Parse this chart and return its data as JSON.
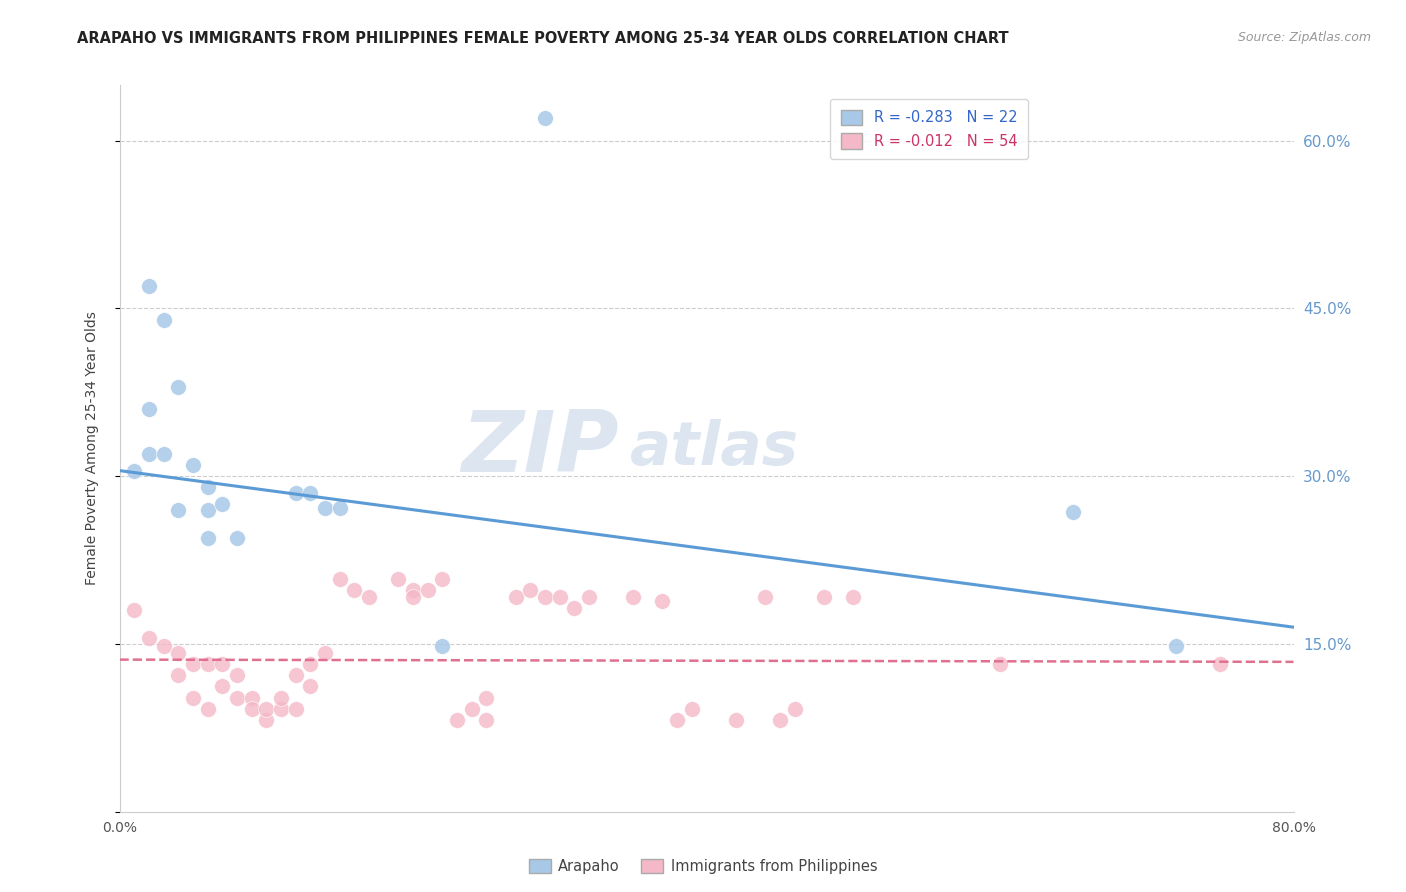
{
  "title": "ARAPAHO VS IMMIGRANTS FROM PHILIPPINES FEMALE POVERTY AMONG 25-34 YEAR OLDS CORRELATION CHART",
  "source": "Source: ZipAtlas.com",
  "ylabel": "Female Poverty Among 25-34 Year Olds",
  "xlim": [
    0.0,
    0.8
  ],
  "ylim": [
    0.0,
    0.65
  ],
  "yticks": [
    0.0,
    0.15,
    0.3,
    0.45,
    0.6
  ],
  "ytick_labels_right": [
    "",
    "15.0%",
    "30.0%",
    "45.0%",
    "60.0%"
  ],
  "watermark_top": "ZIP",
  "watermark_bottom": "atlas",
  "legend_entries": [
    {
      "label": "R = -0.283   N = 22",
      "color": "#a8c8e8"
    },
    {
      "label": "R = -0.012   N = 54",
      "color": "#f4a0b0"
    }
  ],
  "blue_scatter": [
    [
      0.02,
      0.47
    ],
    [
      0.03,
      0.44
    ],
    [
      0.04,
      0.38
    ],
    [
      0.02,
      0.36
    ],
    [
      0.02,
      0.32
    ],
    [
      0.03,
      0.32
    ],
    [
      0.01,
      0.305
    ],
    [
      0.05,
      0.31
    ],
    [
      0.06,
      0.29
    ],
    [
      0.04,
      0.27
    ],
    [
      0.06,
      0.27
    ],
    [
      0.07,
      0.275
    ],
    [
      0.06,
      0.245
    ],
    [
      0.08,
      0.245
    ],
    [
      0.12,
      0.285
    ],
    [
      0.13,
      0.285
    ],
    [
      0.14,
      0.272
    ],
    [
      0.15,
      0.272
    ],
    [
      0.22,
      0.148
    ],
    [
      0.29,
      0.62
    ],
    [
      0.65,
      0.268
    ],
    [
      0.72,
      0.148
    ]
  ],
  "pink_scatter": [
    [
      0.01,
      0.18
    ],
    [
      0.02,
      0.155
    ],
    [
      0.03,
      0.148
    ],
    [
      0.04,
      0.142
    ],
    [
      0.04,
      0.122
    ],
    [
      0.05,
      0.132
    ],
    [
      0.05,
      0.102
    ],
    [
      0.06,
      0.092
    ],
    [
      0.06,
      0.132
    ],
    [
      0.07,
      0.132
    ],
    [
      0.07,
      0.112
    ],
    [
      0.08,
      0.122
    ],
    [
      0.08,
      0.102
    ],
    [
      0.09,
      0.102
    ],
    [
      0.09,
      0.092
    ],
    [
      0.1,
      0.082
    ],
    [
      0.1,
      0.092
    ],
    [
      0.11,
      0.092
    ],
    [
      0.11,
      0.102
    ],
    [
      0.12,
      0.092
    ],
    [
      0.12,
      0.122
    ],
    [
      0.13,
      0.112
    ],
    [
      0.13,
      0.132
    ],
    [
      0.14,
      0.142
    ],
    [
      0.15,
      0.208
    ],
    [
      0.16,
      0.198
    ],
    [
      0.17,
      0.192
    ],
    [
      0.19,
      0.208
    ],
    [
      0.2,
      0.198
    ],
    [
      0.2,
      0.192
    ],
    [
      0.21,
      0.198
    ],
    [
      0.22,
      0.208
    ],
    [
      0.23,
      0.082
    ],
    [
      0.24,
      0.092
    ],
    [
      0.25,
      0.082
    ],
    [
      0.25,
      0.102
    ],
    [
      0.27,
      0.192
    ],
    [
      0.28,
      0.198
    ],
    [
      0.29,
      0.192
    ],
    [
      0.3,
      0.192
    ],
    [
      0.31,
      0.182
    ],
    [
      0.32,
      0.192
    ],
    [
      0.35,
      0.192
    ],
    [
      0.37,
      0.188
    ],
    [
      0.38,
      0.082
    ],
    [
      0.39,
      0.092
    ],
    [
      0.42,
      0.082
    ],
    [
      0.44,
      0.192
    ],
    [
      0.45,
      0.082
    ],
    [
      0.46,
      0.092
    ],
    [
      0.48,
      0.192
    ],
    [
      0.5,
      0.192
    ],
    [
      0.6,
      0.132
    ],
    [
      0.75,
      0.132
    ]
  ],
  "blue_line_x": [
    0.0,
    0.8
  ],
  "blue_line_y": [
    0.305,
    0.165
  ],
  "pink_line_x": [
    0.0,
    0.8
  ],
  "pink_line_y": [
    0.136,
    0.134
  ],
  "blue_line_color": "#5b9bd5",
  "pink_line_color": "#e07090",
  "blue_scatter_color": "#a8c8e8",
  "pink_scatter_color": "#f4b8c8",
  "grid_color": "#cccccc",
  "background_color": "#ffffff",
  "title_fontsize": 10.5,
  "source_fontsize": 9,
  "ytick_color": "#6699cc",
  "watermark_color": "#dde6f0",
  "watermark_fontsize_big": 62,
  "watermark_fontsize_small": 44
}
